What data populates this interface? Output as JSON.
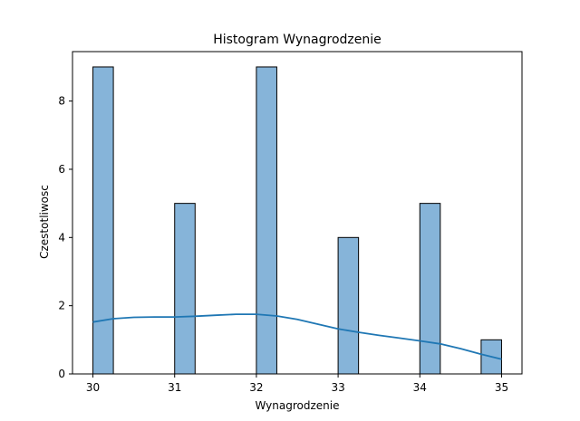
{
  "chart_data": {
    "type": "bar",
    "title": "Histogram Wynagrodzenie",
    "xlabel": "Wynagrodzenie",
    "ylabel": "Czestotliwosc",
    "xlim": [
      29.75,
      35.25
    ],
    "ylim": [
      0,
      9.45
    ],
    "xticks": [
      30,
      31,
      32,
      33,
      34,
      35
    ],
    "xtick_labels": [
      "30",
      "31",
      "32",
      "33",
      "34",
      "35"
    ],
    "yticks": [
      0,
      2,
      4,
      6,
      8
    ],
    "ytick_labels": [
      "0",
      "2",
      "4",
      "6",
      "8"
    ],
    "bin_width": 0.25,
    "bins": [
      {
        "x0": 30.0,
        "x1": 30.25,
        "count": 9
      },
      {
        "x0": 31.0,
        "x1": 31.25,
        "count": 5
      },
      {
        "x0": 32.0,
        "x1": 32.25,
        "count": 9
      },
      {
        "x0": 33.0,
        "x1": 33.25,
        "count": 4
      },
      {
        "x0": 34.0,
        "x1": 34.25,
        "count": 5
      },
      {
        "x0": 34.75,
        "x1": 35.0,
        "count": 1
      }
    ],
    "kde": {
      "x": [
        30.0,
        30.25,
        30.5,
        30.75,
        31.0,
        31.25,
        31.5,
        31.75,
        32.0,
        32.25,
        32.5,
        32.75,
        33.0,
        33.25,
        33.5,
        33.75,
        34.0,
        34.25,
        34.5,
        34.75,
        35.0
      ],
      "y": [
        1.52,
        1.62,
        1.66,
        1.67,
        1.67,
        1.69,
        1.72,
        1.75,
        1.75,
        1.7,
        1.6,
        1.46,
        1.32,
        1.22,
        1.13,
        1.05,
        0.97,
        0.88,
        0.74,
        0.58,
        0.43
      ]
    },
    "colors": {
      "bar_fill": "#86b4d9",
      "bar_edge": "#000000",
      "kde_line": "#1f77b4"
    },
    "grid": false,
    "legend": "none"
  }
}
